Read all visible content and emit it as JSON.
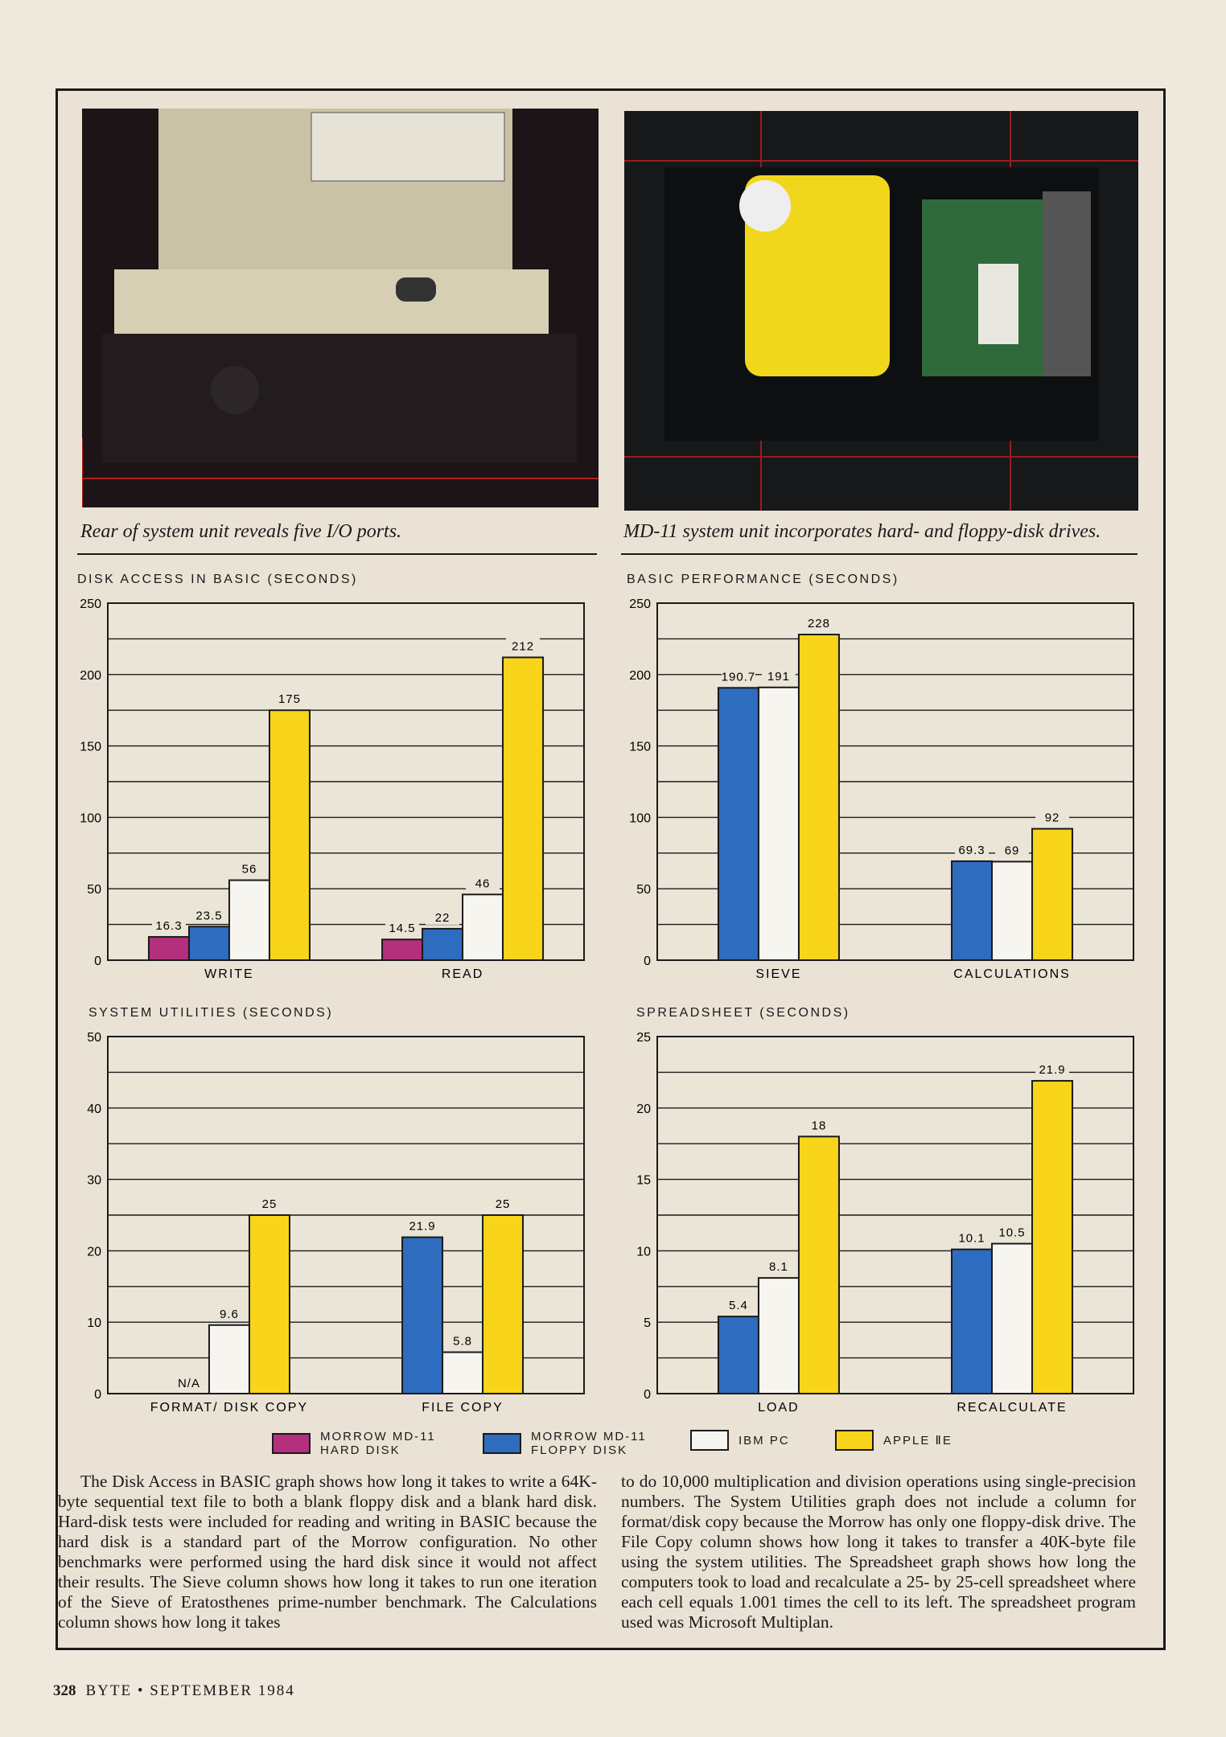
{
  "photos": [
    {
      "caption": "Rear of system unit reveals five I/O ports."
    },
    {
      "caption": "MD-11 system unit incorporates hard- and floppy-disk drives."
    }
  ],
  "legend": [
    {
      "name": "MORROW MD-11 HARD DISK",
      "line1": "MORROW MD-11",
      "line2": "HARD DISK",
      "color": "#b3307c"
    },
    {
      "name": "MORROW MD-11 FLOPPY DISK",
      "line1": "MORROW MD-11",
      "line2": "FLOPPY DISK",
      "color": "#2e6cc0"
    },
    {
      "name": "IBM PC",
      "line1": "IBM PC",
      "line2": "",
      "color": "#f7f5f0"
    },
    {
      "name": "APPLE IIE",
      "line1": "APPLE ⅡE",
      "line2": "",
      "color": "#f8d51a"
    }
  ],
  "chart_data": [
    {
      "type": "bar",
      "title": "DISK ACCESS IN BASIC (SECONDS)",
      "ylim": [
        0,
        250
      ],
      "yticks": [
        0,
        50,
        100,
        150,
        200,
        250
      ],
      "grid": true,
      "categories": [
        "WRITE",
        "READ"
      ],
      "series": [
        {
          "name": "MORROW MD-11 HARD DISK",
          "values": [
            16.3,
            14.5
          ],
          "labels": [
            "16.3",
            "14.5"
          ]
        },
        {
          "name": "MORROW MD-11 FLOPPY DISK",
          "values": [
            23.5,
            22
          ],
          "labels": [
            "23.5",
            "22"
          ]
        },
        {
          "name": "IBM PC",
          "values": [
            56,
            46
          ],
          "labels": [
            "56",
            "46"
          ]
        },
        {
          "name": "APPLE IIE",
          "values": [
            175,
            212
          ],
          "labels": [
            "175",
            "212"
          ]
        }
      ]
    },
    {
      "type": "bar",
      "title": "BASIC PERFORMANCE (SECONDS)",
      "ylim": [
        0,
        250
      ],
      "yticks": [
        0,
        50,
        100,
        150,
        200,
        250
      ],
      "grid": true,
      "categories": [
        "SIEVE",
        "CALCULATIONS"
      ],
      "series": [
        {
          "name": "MORROW MD-11 FLOPPY DISK",
          "values": [
            190.7,
            69.3
          ],
          "labels": [
            "190.7",
            "69.3"
          ]
        },
        {
          "name": "IBM PC",
          "values": [
            191,
            69
          ],
          "labels": [
            "191",
            "69"
          ]
        },
        {
          "name": "APPLE IIE",
          "values": [
            228,
            92
          ],
          "labels": [
            "228",
            "92"
          ]
        }
      ]
    },
    {
      "type": "bar",
      "title": "SYSTEM UTILITIES (SECONDS)",
      "ylim": [
        0,
        50
      ],
      "yticks": [
        0,
        10,
        20,
        30,
        40,
        50
      ],
      "grid": true,
      "categories": [
        "FORMAT/ DISK COPY",
        "FILE COPY"
      ],
      "series": [
        {
          "name": "MORROW MD-11 FLOPPY DISK",
          "values": [
            null,
            21.9
          ],
          "labels": [
            "N/A",
            "21.9"
          ]
        },
        {
          "name": "IBM PC",
          "values": [
            9.6,
            5.8
          ],
          "labels": [
            "9.6",
            "5.8"
          ]
        },
        {
          "name": "APPLE IIE",
          "values": [
            25,
            25
          ],
          "labels": [
            "25",
            "25"
          ]
        }
      ]
    },
    {
      "type": "bar",
      "title": "SPREADSHEET (SECONDS)",
      "ylim": [
        0,
        25
      ],
      "yticks": [
        0,
        5,
        10,
        15,
        20,
        25
      ],
      "grid": true,
      "categories": [
        "LOAD",
        "RECALCULATE"
      ],
      "series": [
        {
          "name": "MORROW MD-11 FLOPPY DISK",
          "values": [
            5.4,
            10.1
          ],
          "labels": [
            "5.4",
            "10.1"
          ]
        },
        {
          "name": "IBM PC",
          "values": [
            8.1,
            10.5
          ],
          "labels": [
            "8.1",
            "10.5"
          ]
        },
        {
          "name": "APPLE IIE",
          "values": [
            18,
            21.9
          ],
          "labels": [
            "18",
            "21.9"
          ]
        }
      ]
    }
  ],
  "body": {
    "col1": "The Disk Access in BASIC graph shows how long it takes to write a 64K-byte sequential text file to both a blank floppy disk and a blank hard disk. Hard-disk tests were included for reading and writing in BASIC because the hard disk is a standard part of the Morrow configuration. No other benchmarks were performed using the hard disk since it would not affect their results. The Sieve column shows how long it takes to run one iteration of the Sieve of Eratosthenes prime-number benchmark. The Calculations column shows how long it takes",
    "col2": "to do 10,000 multiplication and division operations using single-precision numbers. The System Utilities graph does not include a column for format/disk copy because the Morrow has only one floppy-disk drive. The File Copy column shows how long it takes to transfer a 40K-byte file using the system utilities. The Spreadsheet graph shows how long the computers took to load and recalculate a 25- by 25-cell spreadsheet where each cell equals 1.001 times the cell to its left. The spreadsheet program used was Microsoft Multiplan."
  },
  "footer": {
    "page": "328",
    "text": "BYTE • SEPTEMBER 1984"
  }
}
